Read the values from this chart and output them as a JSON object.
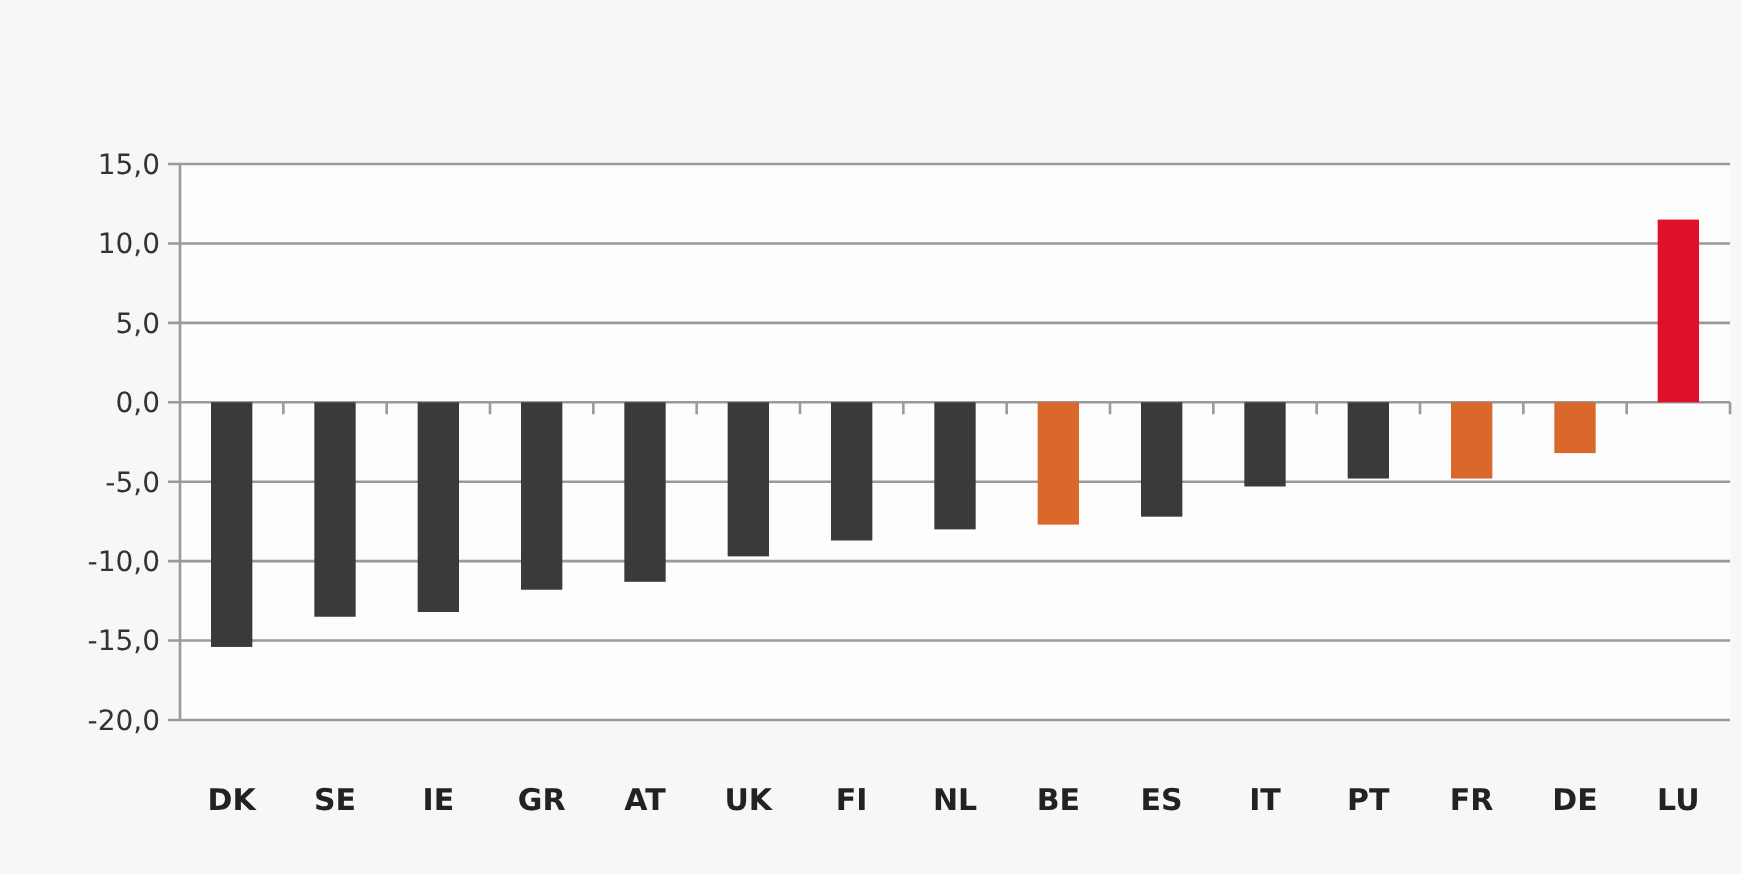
{
  "chart_data": {
    "type": "bar",
    "categories": [
      "DK",
      "SE",
      "IE",
      "GR",
      "AT",
      "UK",
      "FI",
      "NL",
      "BE",
      "ES",
      "IT",
      "PT",
      "FR",
      "DE",
      "LU"
    ],
    "values": [
      -15.4,
      -13.5,
      -13.2,
      -11.8,
      -11.3,
      -9.7,
      -8.7,
      -8.0,
      -7.7,
      -7.2,
      -5.3,
      -4.8,
      -4.8,
      -3.2,
      11.5
    ],
    "colors": [
      "#3a3a3a",
      "#3a3a3a",
      "#3a3a3a",
      "#3a3a3a",
      "#3a3a3a",
      "#3a3a3a",
      "#3a3a3a",
      "#3a3a3a",
      "#d9682a",
      "#3a3a3a",
      "#3a3a3a",
      "#3a3a3a",
      "#d9682a",
      "#d9682a",
      "#e0102a"
    ],
    "ylim": [
      -20,
      15
    ],
    "yticks": [
      {
        "value": -20,
        "label": "-20,0"
      },
      {
        "value": -15,
        "label": "-15,0"
      },
      {
        "value": -10,
        "label": "-10,0"
      },
      {
        "value": -5,
        "label": "-5,0"
      },
      {
        "value": 0,
        "label": "0,0"
      },
      {
        "value": 5,
        "label": "5,0"
      },
      {
        "value": 10,
        "label": "10,0"
      },
      {
        "value": 15,
        "label": "15,0"
      }
    ],
    "grid": "y"
  }
}
